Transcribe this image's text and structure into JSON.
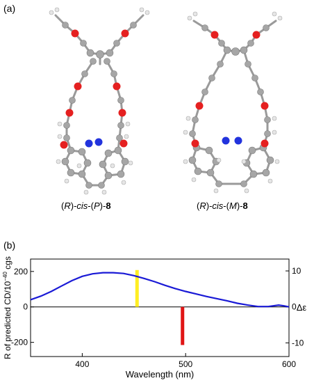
{
  "panel_a": {
    "label": "(a)",
    "left_caption": {
      "pre": "(",
      "r": "R",
      "mid1": ")-",
      "cis": "cis",
      "mid2": "-(",
      "stereo": "P",
      "mid3": ")-",
      "num": "8"
    },
    "right_caption": {
      "pre": "(",
      "r": "R",
      "mid1": ")-",
      "cis": "cis",
      "mid2": "-(",
      "stereo": "M",
      "mid3": ")-",
      "num": "8"
    }
  },
  "panel_b": {
    "label": "(b)"
  },
  "colors": {
    "carbon": "#a6a6a6",
    "oxygen": "#e52020",
    "nitrogen": "#2233dd",
    "hydrogen": "#e6e6e6",
    "curve": "#1a1ad6",
    "bar_positive": "#ffee22",
    "bar_negative": "#e01515"
  },
  "chart_data": {
    "type": "line",
    "xlabel": "Wavelength (nm)",
    "ylabel": "R of predicted CD/10",
    "ylabel_sup": "−40",
    "ylabel_unit": " cgs",
    "y2label": "Δε",
    "xlim": [
      350,
      600
    ],
    "ylim": [
      -280,
      270
    ],
    "y2lim": [
      -13.8,
      13.3
    ],
    "xticks": [
      400,
      500,
      600
    ],
    "yticks": [
      200,
      0,
      -200
    ],
    "y2ticks": [
      10,
      0,
      -10
    ],
    "xtick_labels": [
      "400",
      "500",
      "600"
    ],
    "ytick_labels": [
      "200",
      "0",
      "-200"
    ],
    "y2tick_labels": [
      "10",
      "0",
      "-10"
    ],
    "spectrum_axis": "right",
    "spectrum": {
      "x": [
        350,
        360,
        370,
        380,
        390,
        400,
        410,
        420,
        430,
        440,
        450,
        460,
        470,
        480,
        490,
        500,
        510,
        520,
        530,
        540,
        550,
        560,
        570,
        580,
        590,
        595,
        600
      ],
      "y": [
        2.0,
        3.0,
        4.3,
        5.8,
        7.3,
        8.5,
        9.2,
        9.5,
        9.5,
        9.3,
        8.7,
        7.9,
        7.0,
        6.0,
        5.1,
        4.3,
        3.6,
        2.9,
        2.3,
        1.7,
        1.0,
        0.5,
        0.1,
        0.1,
        0.5,
        0.3,
        0.0
      ]
    },
    "sticks": [
      {
        "x": 453,
        "R": 208
      },
      {
        "x": 497,
        "R": -215
      }
    ],
    "zero_line": true
  }
}
